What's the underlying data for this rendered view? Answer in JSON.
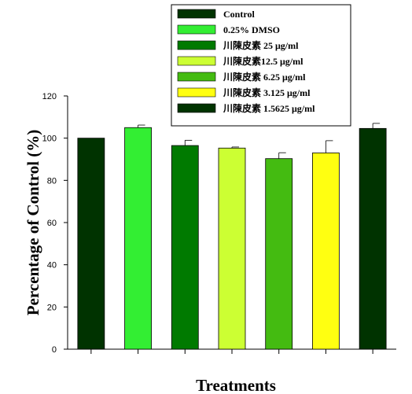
{
  "chart_data": {
    "type": "bar",
    "xlabel": "Treatments",
    "ylabel": "Percentage of Control (%)",
    "ylim": [
      0,
      120
    ],
    "yticks": [
      "0",
      "20",
      "40",
      "60",
      "80",
      "100",
      "120"
    ],
    "grid": false,
    "legend_position": "top",
    "series": [
      {
        "name": "Control",
        "value": 100,
        "error": 0,
        "color": "#003300"
      },
      {
        "name": "0.25% DMSO",
        "value": 105,
        "error": 1.2,
        "color": "#33ee33"
      },
      {
        "name": "川陳皮素 25 μg/ml",
        "value": 96.5,
        "error": 2.5,
        "color": "#007a00"
      },
      {
        "name": "川陳皮素12.5 μg/ml",
        "value": 95.3,
        "error": 0.5,
        "color": "#ccff33"
      },
      {
        "name": "川陳皮素 6.25 μg/ml",
        "value": 90.3,
        "error": 2.8,
        "color": "#44bb11"
      },
      {
        "name": "川陳皮素 3.125 μg/ml",
        "value": 93,
        "error": 5.8,
        "color": "#ffff11"
      },
      {
        "name": "川陳皮素 1.5625 μg/ml",
        "value": 104.6,
        "error": 2.4,
        "color": "#003300"
      }
    ]
  }
}
